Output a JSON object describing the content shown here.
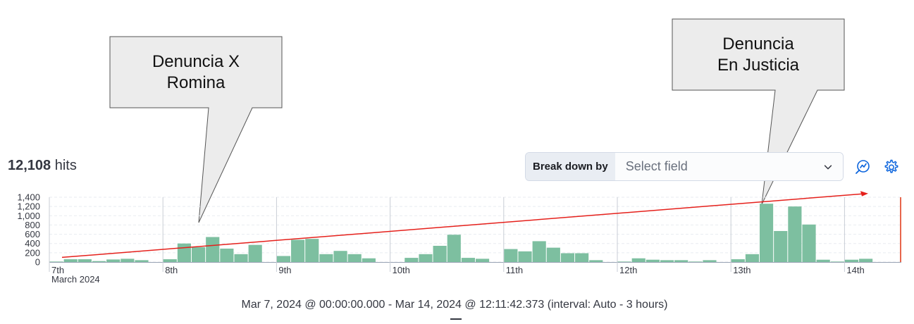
{
  "annotations": [
    {
      "line1": "Denuncia X",
      "line2": "Romina"
    },
    {
      "line1": "Denuncia",
      "line2": "En Justicia"
    }
  ],
  "hits": {
    "count": "12,108",
    "label": "hits"
  },
  "breakdown": {
    "label": "Break down by",
    "placeholder": "Select field"
  },
  "icons": {
    "inspect": "inspect-chart-icon",
    "settings": "gear-icon",
    "chevron": "chevron-down-icon"
  },
  "colors": {
    "bar": "#7dbfa0",
    "trend": "#e5201b",
    "grid": "#e8ebf0",
    "now_marker": "#e7664c"
  },
  "chart_data": {
    "type": "bar",
    "ylim": [
      0,
      1400
    ],
    "yticks": [
      "0",
      "200",
      "400",
      "600",
      "800",
      "1,000",
      "1,200",
      "1,400"
    ],
    "day_labels": [
      "7th",
      "8th",
      "9th",
      "10th",
      "11th",
      "12th",
      "13th",
      "14th"
    ],
    "sub_label": "March 2024",
    "interval_hours": 3,
    "values": [
      10,
      60,
      60,
      20,
      55,
      70,
      40,
      0,
      60,
      400,
      320,
      540,
      290,
      170,
      370,
      0,
      130,
      480,
      500,
      170,
      240,
      170,
      80,
      0,
      0,
      90,
      170,
      350,
      590,
      90,
      70,
      0,
      280,
      230,
      450,
      310,
      190,
      190,
      40,
      0,
      10,
      80,
      50,
      40,
      40,
      10,
      40,
      0,
      60,
      170,
      1260,
      670,
      1200,
      810,
      50,
      10,
      50,
      70,
      0,
      0
    ],
    "trend": {
      "from_value": 100,
      "to_value": 1480
    }
  },
  "footer": {
    "range": "Mar 7, 2024 @ 00:00:00.000 - Mar 14, 2024 @ 12:11:42.373 (interval: Auto - 3 hours)"
  }
}
